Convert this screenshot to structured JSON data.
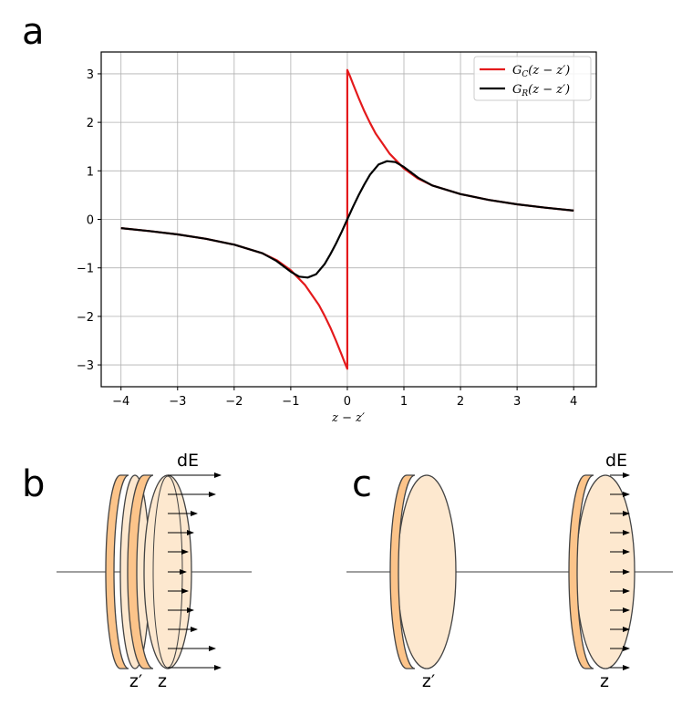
{
  "panels": {
    "a": "a",
    "b": "b",
    "c": "c"
  },
  "chart_data": {
    "type": "line",
    "xlabel": "z − z′",
    "ylabel": "",
    "xlim": [
      -4.35,
      4.4
    ],
    "ylim": [
      -3.45,
      3.45
    ],
    "x_ticks": [
      -4,
      -3,
      -2,
      -1,
      0,
      1,
      2,
      3,
      4
    ],
    "x_tick_labels": [
      "−4",
      "−3",
      "−2",
      "−1",
      "0",
      "1",
      "2",
      "3",
      "4"
    ],
    "y_ticks": [
      -3,
      -2,
      -1,
      0,
      1,
      2,
      3
    ],
    "y_tick_labels": [
      "−3",
      "−2",
      "−1",
      "0",
      "1",
      "2",
      "3"
    ],
    "grid": true,
    "legend_position": "top-right",
    "series": [
      {
        "name": "G_C(z − z′)",
        "label_main": "G",
        "label_sub": "C",
        "label_arg": "(z − z′)",
        "color": "#e41a1c",
        "x": [
          -4,
          -3.5,
          -3,
          -2.5,
          -2,
          -1.5,
          -1.25,
          -1,
          -0.75,
          -0.5,
          -0.4,
          -0.3,
          -0.2,
          -0.1,
          -0.05,
          0,
          0,
          0.05,
          0.1,
          0.2,
          0.3,
          0.4,
          0.5,
          0.75,
          1,
          1.25,
          1.5,
          2,
          2.5,
          3,
          3.5,
          4
        ],
        "y": [
          -0.18,
          -0.24,
          -0.31,
          -0.4,
          -0.52,
          -0.7,
          -0.84,
          -1.05,
          -1.35,
          -1.77,
          -1.99,
          -2.23,
          -2.5,
          -2.79,
          -2.94,
          -3.08,
          3.08,
          2.94,
          2.79,
          2.5,
          2.23,
          1.99,
          1.77,
          1.35,
          1.05,
          0.84,
          0.7,
          0.52,
          0.4,
          0.31,
          0.24,
          0.18
        ]
      },
      {
        "name": "G_R(z − z′)",
        "label_main": "G",
        "label_sub": "R",
        "label_arg": "(z − z′)",
        "color": "#000000",
        "x": [
          -4,
          -3.5,
          -3,
          -2.5,
          -2,
          -1.5,
          -1.25,
          -1,
          -0.85,
          -0.7,
          -0.55,
          -0.4,
          -0.3,
          -0.2,
          -0.1,
          0,
          0.1,
          0.2,
          0.3,
          0.4,
          0.55,
          0.7,
          0.85,
          1,
          1.25,
          1.5,
          2,
          2.5,
          3,
          3.5,
          4
        ],
        "y": [
          -0.18,
          -0.24,
          -0.31,
          -0.4,
          -0.52,
          -0.7,
          -0.86,
          -1.08,
          -1.18,
          -1.2,
          -1.13,
          -0.92,
          -0.72,
          -0.5,
          -0.26,
          0,
          0.26,
          0.5,
          0.72,
          0.92,
          1.13,
          1.2,
          1.18,
          1.08,
          0.86,
          0.7,
          0.52,
          0.4,
          0.31,
          0.24,
          0.18
        ]
      }
    ]
  },
  "diagram_b": {
    "field_label": "dE",
    "ring_labels": [
      "z′",
      "z"
    ]
  },
  "diagram_c": {
    "field_label": "dE",
    "ring_labels": [
      "z′",
      "z"
    ]
  },
  "colors": {
    "ring_front": "#fcc48a",
    "ring_back": "#fde8cf",
    "ring_stroke": "#444444",
    "axis": "#666666"
  }
}
